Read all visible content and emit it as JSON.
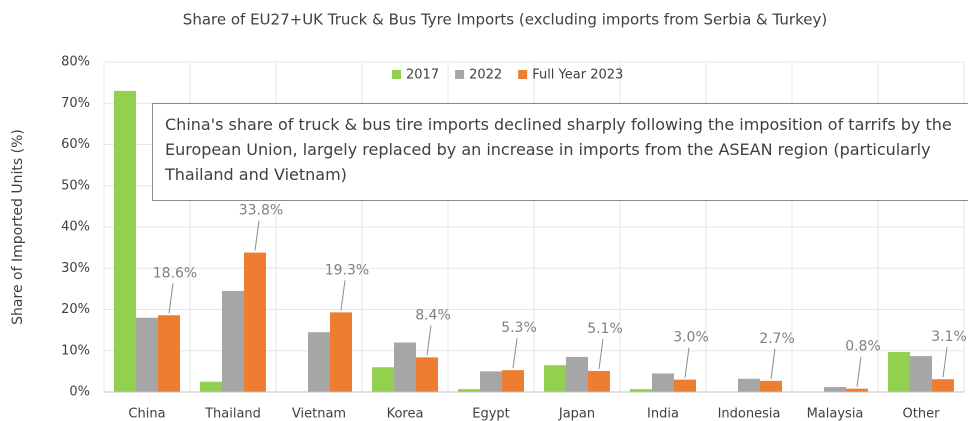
{
  "chart_data": {
    "type": "bar",
    "title": "Share of EU27+UK Truck & Bus Tyre Imports (excluding imports from Serbia & Turkey)",
    "y_label": "Share of Imported Units (%)",
    "annotation": "China's share of truck & bus tire imports declined sharply following the imposition of tarrifs by the European Union, largely replaced by an increase in imports from the ASEAN region (particularly Thailand and Vietnam)",
    "categories": [
      "China",
      "Thailand",
      "Vietnam",
      "Korea",
      "Egypt",
      "Japan",
      "India",
      "Indonesia",
      "Malaysia",
      "Other"
    ],
    "series": [
      {
        "name": "2017",
        "color": "#92d050",
        "values": [
          73,
          2.5,
          0,
          6,
          0.7,
          6.5,
          0.7,
          0,
          0,
          9.7
        ]
      },
      {
        "name": "2022",
        "color": "#a6a6a6",
        "values": [
          18,
          24.5,
          14.5,
          12,
          5,
          8.5,
          4.5,
          3.2,
          1.2,
          8.7
        ]
      },
      {
        "name": "Full Year 2023",
        "color": "#ed7d31",
        "values": [
          18.6,
          33.8,
          19.3,
          8.4,
          5.3,
          5.1,
          3.0,
          2.7,
          0.8,
          3.1
        ],
        "value_labels": [
          "18.6%",
          "33.8%",
          "19.3%",
          "8.4%",
          "5.3%",
          "5.1%",
          "3.0%",
          "2.7%",
          "0.8%",
          "3.1%"
        ]
      }
    ],
    "ylim": [
      0,
      80
    ],
    "yticks": [
      {
        "value": 0,
        "label": "0%"
      },
      {
        "value": 10,
        "label": "10%"
      },
      {
        "value": 20,
        "label": "20%"
      },
      {
        "value": 30,
        "label": "30%"
      },
      {
        "value": 40,
        "label": "40%"
      },
      {
        "value": 50,
        "label": "50%"
      },
      {
        "value": 60,
        "label": "60%"
      },
      {
        "value": 70,
        "label": "70%"
      },
      {
        "value": 80,
        "label": "80%"
      }
    ],
    "legend": "top",
    "grid": true
  }
}
